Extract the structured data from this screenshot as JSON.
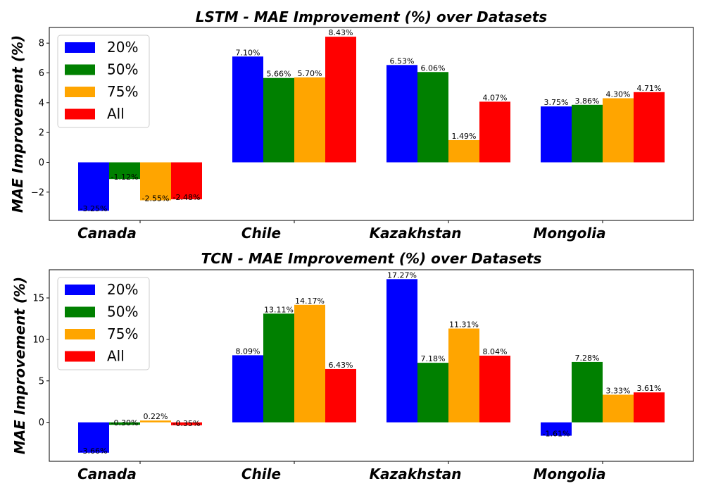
{
  "chart_data": [
    {
      "type": "bar",
      "title": "LSTM - MAE Improvement (%) over Datasets",
      "xlabel": "",
      "ylabel": "MAE Improvement (%)",
      "categories": [
        "Canada",
        "Chile",
        "Kazakhstan",
        "Mongolia"
      ],
      "series": [
        {
          "name": "20%",
          "color": "#0000ff",
          "values": [
            -3.25,
            7.1,
            6.53,
            3.75
          ],
          "labels": [
            "-3.25%",
            "7.10%",
            "6.53%",
            "3.75%"
          ]
        },
        {
          "name": "50%",
          "color": "#008000",
          "values": [
            -1.12,
            5.66,
            6.06,
            3.86
          ],
          "labels": [
            "-1.12%",
            "5.66%",
            "6.06%",
            "3.86%"
          ]
        },
        {
          "name": "75%",
          "color": "#ffa500",
          "values": [
            -2.55,
            5.7,
            1.49,
            4.3
          ],
          "labels": [
            "-2.55%",
            "5.70%",
            "1.49%",
            "4.30%"
          ]
        },
        {
          "name": "All",
          "color": "#ff0000",
          "values": [
            -2.48,
            8.43,
            4.07,
            4.71
          ],
          "labels": [
            "-2.48%",
            "8.43%",
            "4.07%",
            "4.71%"
          ]
        }
      ],
      "ylim": [
        -3.9,
        9.05
      ],
      "yticks": [
        -2,
        0,
        2,
        4,
        6,
        8
      ],
      "ytick_labels": [
        "−2",
        "0",
        "2",
        "4",
        "6",
        "8"
      ],
      "legend": "top-left",
      "grid": false
    },
    {
      "type": "bar",
      "title": "TCN - MAE Improvement (%) over Datasets",
      "xlabel": "",
      "ylabel": "MAE Improvement (%)",
      "categories": [
        "Canada",
        "Chile",
        "Kazakhstan",
        "Mongolia"
      ],
      "series": [
        {
          "name": "20%",
          "color": "#0000ff",
          "values": [
            -3.66,
            8.09,
            17.27,
            -1.61
          ],
          "labels": [
            "-3.66%",
            "8.09%",
            "17.27%",
            "-1.61%"
          ]
        },
        {
          "name": "50%",
          "color": "#008000",
          "values": [
            -0.3,
            13.11,
            7.18,
            7.28
          ],
          "labels": [
            "-0.30%",
            "13.11%",
            "7.18%",
            "7.28%"
          ]
        },
        {
          "name": "75%",
          "color": "#ffa500",
          "values": [
            0.22,
            14.17,
            11.31,
            3.33
          ],
          "labels": [
            "0.22%",
            "14.17%",
            "11.31%",
            "3.33%"
          ]
        },
        {
          "name": "All",
          "color": "#ff0000",
          "values": [
            -0.35,
            6.43,
            8.04,
            3.61
          ],
          "labels": [
            "-0.35%",
            "6.43%",
            "8.04%",
            "3.61%"
          ]
        }
      ],
      "ylim": [
        -4.7,
        18.4
      ],
      "yticks": [
        0,
        5,
        10,
        15
      ],
      "ytick_labels": [
        "0",
        "5",
        "10",
        "15"
      ],
      "legend": "top-left",
      "grid": false
    }
  ]
}
